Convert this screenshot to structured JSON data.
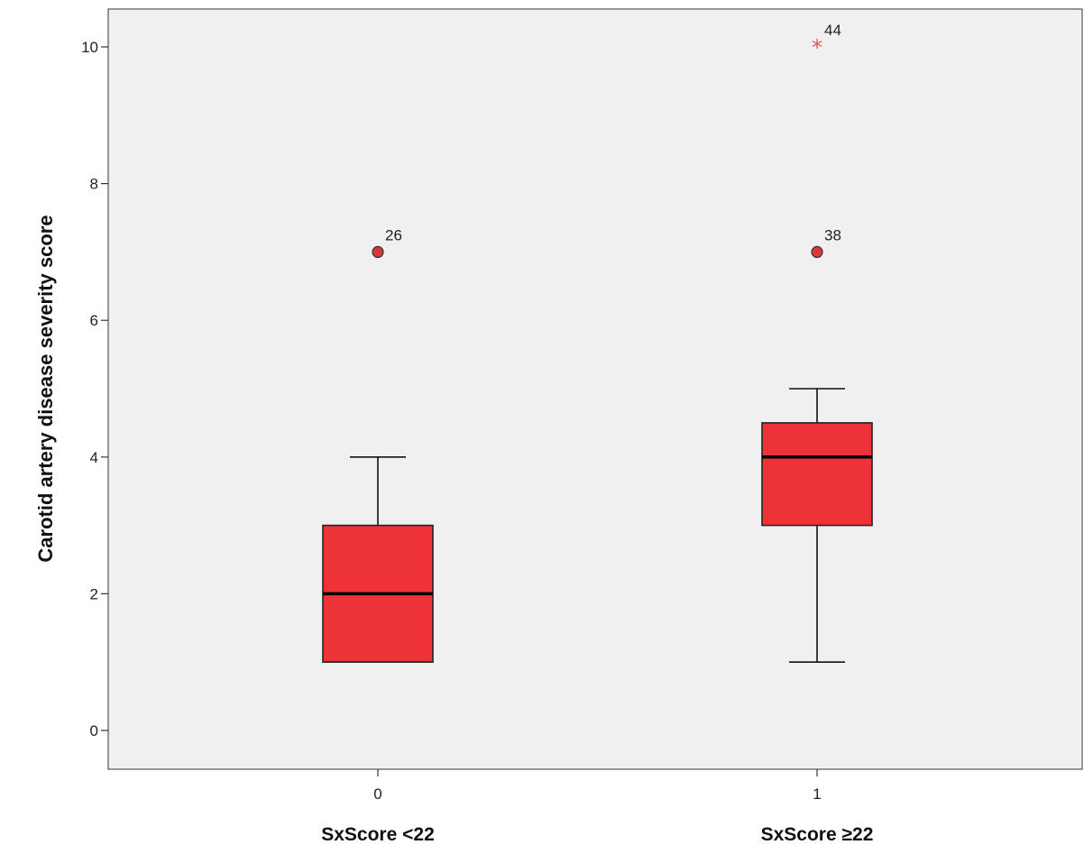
{
  "chart_data": {
    "type": "boxplot",
    "title": "",
    "ylabel": "Carotid artery disease severity score",
    "ylim": [
      0,
      10
    ],
    "yticks": [
      0,
      2,
      4,
      6,
      8,
      10
    ],
    "categories": [
      "0",
      "1"
    ],
    "group_labels": [
      "SxScore <22",
      "SxScore ≥22"
    ],
    "grid": false,
    "colors": {
      "box": "#ee3338",
      "box_stroke": "#222222",
      "plot_bg": "#f0f0f0",
      "outlier": "#d9383b",
      "extreme": "#e05560"
    },
    "boxes": [
      {
        "category": "0",
        "whisker_low": 1,
        "q1": 1,
        "median": 2,
        "q3": 3,
        "whisker_high": 4,
        "outliers": [
          {
            "value": 7,
            "label": "26",
            "marker": "circle"
          }
        ]
      },
      {
        "category": "1",
        "whisker_low": 1,
        "q1": 3,
        "median": 4,
        "q3": 4.5,
        "whisker_high": 5,
        "outliers": [
          {
            "value": 7,
            "label": "38",
            "marker": "circle"
          },
          {
            "value": 10,
            "label": "44",
            "marker": "star"
          }
        ]
      }
    ]
  }
}
